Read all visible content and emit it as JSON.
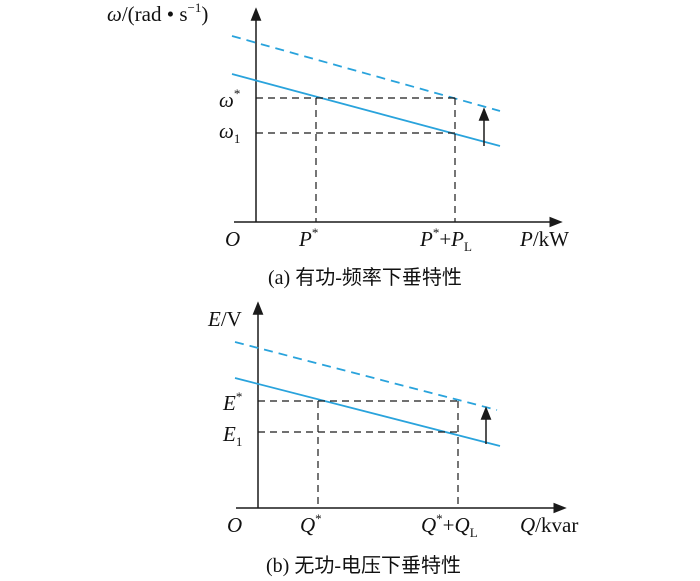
{
  "colors": {
    "curve": "#29a3dc",
    "axis": "#1a1a1a",
    "guide": "#1a1a1a"
  },
  "top": {
    "y_label": {
      "sym": "ω",
      "rest": "/(rad • s",
      "sup": "−1",
      "close": ")"
    },
    "x_label": {
      "sym": "P",
      "rest": "/kW"
    },
    "origin": "O",
    "tick_star": {
      "sym": "ω",
      "sup": "*"
    },
    "tick_one": {
      "sym": "ω",
      "sub": "1"
    },
    "x_tick_1": {
      "sym": "P",
      "sup": "*"
    },
    "x_tick_2": {
      "sym": "P",
      "sup": "*",
      "plus": "+",
      "sym2": "P",
      "sub": "L"
    },
    "caption": "(a)  有功-频率下垂特性"
  },
  "bottom": {
    "y_label": {
      "sym": "E",
      "rest": "/V"
    },
    "x_label": {
      "sym": "Q",
      "rest": "/kvar"
    },
    "origin": "O",
    "tick_star": {
      "sym": "E",
      "sup": "*"
    },
    "tick_one": {
      "sym": "E",
      "sub": "1"
    },
    "x_tick_1": {
      "sym": "Q",
      "sup": "*"
    },
    "x_tick_2": {
      "sym": "Q",
      "sup": "*",
      "plus": "+",
      "sym2": "Q",
      "sub": "L"
    },
    "caption": "(b)  无功-电压下垂特性"
  }
}
